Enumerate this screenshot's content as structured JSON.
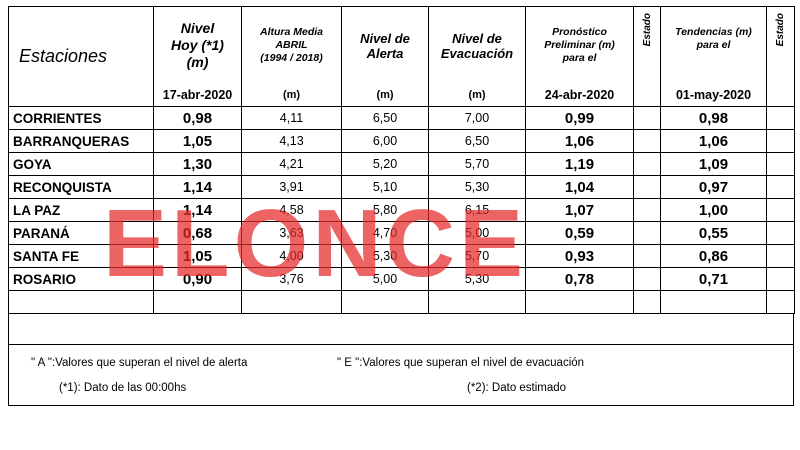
{
  "header": {
    "estaciones": "Estaciones",
    "nivel_hoy": [
      "Nivel",
      "Hoy (*1)",
      "(m)"
    ],
    "nivel_hoy_date": "17-abr-2020",
    "altura_media": [
      "Altura Media",
      "ABRIL",
      "(1994 / 2018)"
    ],
    "altura_media_unit": "(m)",
    "nivel_alerta": [
      "Nivel de",
      "Alerta"
    ],
    "nivel_alerta_unit": "(m)",
    "nivel_evacuacion": [
      "Nivel de",
      "Evacuación"
    ],
    "nivel_evacuacion_unit": "(m)",
    "pronostico": [
      "Pronóstico",
      "Preliminar (m)",
      "para el"
    ],
    "pronostico_date": "24-abr-2020",
    "estado": "Estado",
    "tendencias": [
      "Tendencias (m)",
      "para el"
    ],
    "tendencias_date": "01-may-2020",
    "estado2": "Estado"
  },
  "rows": [
    {
      "station": "CORRIENTES",
      "hoy": "0,98",
      "media": "4,11",
      "alerta": "6,50",
      "evac": "7,00",
      "pron": "0,99",
      "tend": "0,98"
    },
    {
      "station": "BARRANQUERAS",
      "hoy": "1,05",
      "media": "4,13",
      "alerta": "6,00",
      "evac": "6,50",
      "pron": "1,06",
      "tend": "1,06"
    },
    {
      "station": "GOYA",
      "hoy": "1,30",
      "media": "4,21",
      "alerta": "5,20",
      "evac": "5,70",
      "pron": "1,19",
      "tend": "1,09"
    },
    {
      "station": "RECONQUISTA",
      "hoy": "1,14",
      "media": "3,91",
      "alerta": "5,10",
      "evac": "5,30",
      "pron": "1,04",
      "tend": "0,97"
    },
    {
      "station": "LA PAZ",
      "hoy": "1,14",
      "media": "4,58",
      "alerta": "5,80",
      "evac": "6,15",
      "pron": "1,07",
      "tend": "1,00"
    },
    {
      "station": "PARANÁ",
      "hoy": "0,68",
      "media": "3,63",
      "alerta": "4,70",
      "evac": "5,00",
      "pron": "0,59",
      "tend": "0,55"
    },
    {
      "station": "SANTA FE",
      "hoy": "1,05",
      "media": "4,00",
      "alerta": "5,30",
      "evac": "5,70",
      "pron": "0,93",
      "tend": "0,86"
    },
    {
      "station": "ROSARIO",
      "hoy": "0,90",
      "media": "3,76",
      "alerta": "5,00",
      "evac": "5,30",
      "pron": "0,78",
      "tend": "0,71"
    }
  ],
  "notes": {
    "a": "\" A \":Valores que superan el nivel de alerta",
    "e": "\" E \":Valores que superan el nivel de evacuación",
    "n1": "(*1): Dato de las 00:00hs",
    "n2": "(*2): Dato estimado"
  },
  "watermark": "ELONCE",
  "colors": {
    "watermark": "#e62828"
  }
}
